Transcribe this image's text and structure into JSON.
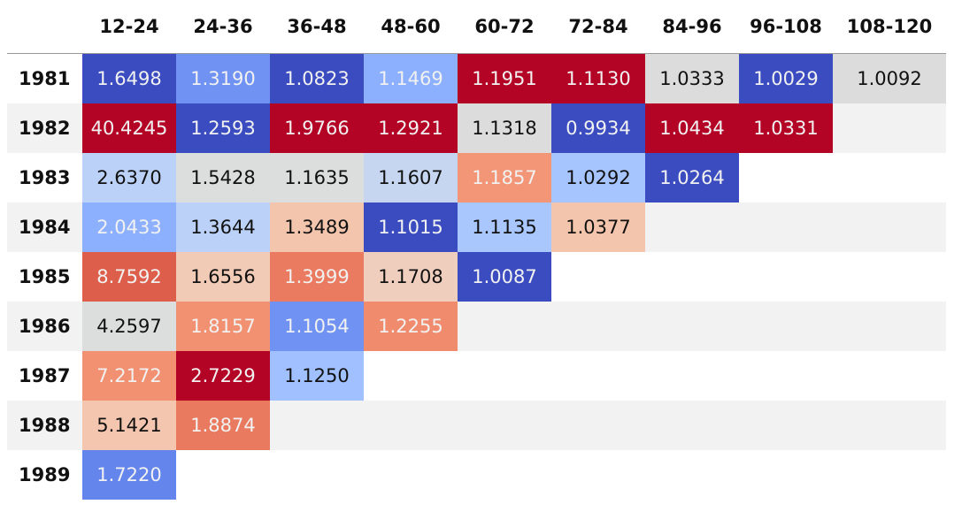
{
  "chart_data": {
    "type": "table",
    "columns": [
      "12-24",
      "24-36",
      "36-48",
      "48-60",
      "60-72",
      "72-84",
      "84-96",
      "96-108",
      "108-120"
    ],
    "rows": [
      {
        "label": "1981",
        "values": [
          "1.6498",
          "1.3190",
          "1.0823",
          "1.1469",
          "1.1951",
          "1.1130",
          "1.0333",
          "1.0029",
          "1.0092"
        ]
      },
      {
        "label": "1982",
        "values": [
          "40.4245",
          "1.2593",
          "1.9766",
          "1.2921",
          "1.1318",
          "0.9934",
          "1.0434",
          "1.0331"
        ]
      },
      {
        "label": "1983",
        "values": [
          "2.6370",
          "1.5428",
          "1.1635",
          "1.1607",
          "1.1857",
          "1.0292",
          "1.0264"
        ]
      },
      {
        "label": "1984",
        "values": [
          "2.0433",
          "1.3644",
          "1.3489",
          "1.1015",
          "1.1135",
          "1.0377"
        ]
      },
      {
        "label": "1985",
        "values": [
          "8.7592",
          "1.6556",
          "1.3999",
          "1.1708",
          "1.0087"
        ]
      },
      {
        "label": "1986",
        "values": [
          "4.2597",
          "1.8157",
          "1.1054",
          "1.2255"
        ]
      },
      {
        "label": "1987",
        "values": [
          "7.2172",
          "2.7229",
          "1.1250"
        ]
      },
      {
        "label": "1988",
        "values": [
          "5.1421",
          "1.8874"
        ]
      },
      {
        "label": "1989",
        "values": [
          "1.7220"
        ]
      }
    ],
    "colormap": "coolwarm",
    "color_scale": "per-column",
    "colors": {
      "c1981": [
        "#3b4cc0",
        "#7092f3",
        "#3b4cc0",
        "#8caffe",
        "#b40426",
        "#b40426",
        "#dddcdc",
        "#3b4cc0",
        "#dddcdc"
      ],
      "c1982": [
        "#b40426",
        "#3b4cc0",
        "#b40426",
        "#b40426",
        "#dddcdc",
        "#3b4cc0",
        "#b40426",
        "#b40426"
      ],
      "c1983": [
        "#bbd1f8",
        "#dcdddd",
        "#dcdddd",
        "#c6d6f1",
        "#f39577",
        "#a6c4fe",
        "#3b4cc0"
      ],
      "c1984": [
        "#8db0fe",
        "#bbd1f8",
        "#f4c5ad",
        "#3b4cc0",
        "#a9c6fd",
        "#f4c5ad"
      ],
      "c1985": [
        "#dd5f4b",
        "#f2cbb7",
        "#ea7b60",
        "#efcebd",
        "#3b4cc0"
      ],
      "c1986": [
        "#dcdddd",
        "#f29072",
        "#6f92f3",
        "#f08b6e"
      ],
      "c1987": [
        "#f29072",
        "#b40426",
        "#a1c0ff"
      ],
      "c1988": [
        "#f4c6af",
        "#e97a5f"
      ],
      "c1989": [
        "#6485ec"
      ]
    }
  }
}
